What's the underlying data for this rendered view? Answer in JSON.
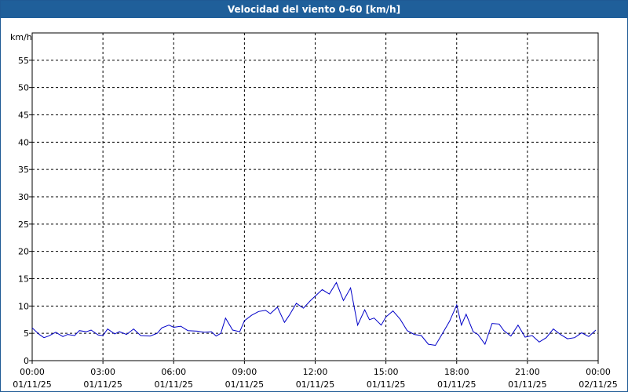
{
  "window": {
    "title": "Velocidad del viento 0-60 [km/h]"
  },
  "chart_data": {
    "type": "line",
    "title": "Velocidad del viento 0-60 [km/h]",
    "ylabel": "km/h",
    "ylim": [
      0,
      60
    ],
    "yticks": [
      0,
      5,
      10,
      15,
      20,
      25,
      30,
      35,
      40,
      45,
      50,
      55
    ],
    "xlim_hours": [
      0,
      24
    ],
    "xticks": [
      {
        "time": "00:00",
        "date": "01/11/25"
      },
      {
        "time": "03:00",
        "date": "01/11/25"
      },
      {
        "time": "06:00",
        "date": "01/11/25"
      },
      {
        "time": "09:00",
        "date": "01/11/25"
      },
      {
        "time": "12:00",
        "date": "01/11/25"
      },
      {
        "time": "15:00",
        "date": "01/11/25"
      },
      {
        "time": "18:00",
        "date": "01/11/25"
      },
      {
        "time": "21:00",
        "date": "01/11/25"
      },
      {
        "time": "00:00",
        "date": "02/11/25"
      }
    ],
    "grid": true,
    "line_color": "#0000c8",
    "series": [
      {
        "x": [
          0,
          0.3,
          0.5,
          0.7,
          1,
          1.3,
          1.5,
          1.8,
          2,
          2.3,
          2.5,
          2.8,
          3,
          3.2,
          3.5,
          3.7,
          4,
          4.3,
          4.6,
          5,
          5.3,
          5.5,
          5.8,
          6,
          6.3,
          6.6,
          7,
          7.3,
          7.6,
          7.8,
          8,
          8.2,
          8.5,
          8.8,
          9,
          9.3,
          9.6,
          9.9,
          10.1,
          10.4,
          10.7,
          10.9,
          11.2,
          11.5,
          11.8,
          12,
          12.3,
          12.6,
          12.9,
          13.2,
          13.5,
          13.8,
          14.1,
          14.3,
          14.5,
          14.8,
          15,
          15.3,
          15.6,
          15.9,
          16.2,
          16.5,
          16.8,
          17.1,
          17.4,
          17.7,
          18,
          18.2,
          18.4,
          18.7,
          18.9,
          19.2,
          19.5,
          19.8,
          20,
          20.3,
          20.6,
          20.9,
          21.2,
          21.5,
          21.8,
          22.1,
          22.4,
          22.7,
          23,
          23.3,
          23.6,
          23.9
        ],
        "y": [
          6,
          4.8,
          4.2,
          4.5,
          5.2,
          4.4,
          4.8,
          4.6,
          5.5,
          5.3,
          5.6,
          4.7,
          4.6,
          5.8,
          4.9,
          5.3,
          4.8,
          5.8,
          4.6,
          4.5,
          5.0,
          6.0,
          6.5,
          6.1,
          6.3,
          5.5,
          5.4,
          5.2,
          5.3,
          4.5,
          5.0,
          7.8,
          5.6,
          5.3,
          7.3,
          8.3,
          9.0,
          9.2,
          8.6,
          9.8,
          7.0,
          8.3,
          10.5,
          9.6,
          11.0,
          11.8,
          13.0,
          12.2,
          14.3,
          11.0,
          13.3,
          6.5,
          9.3,
          7.5,
          7.8,
          6.5,
          8.0,
          9.1,
          7.6,
          5.5,
          4.8,
          4.6,
          3.0,
          2.8,
          5.0,
          7.2,
          10.2,
          6.5,
          8.5,
          5.3,
          4.8,
          3.0,
          6.8,
          6.7,
          5.5,
          4.5,
          6.5,
          4.3,
          4.6,
          3.4,
          4.2,
          5.8,
          4.8,
          4.0,
          4.2,
          5.1,
          4.4,
          5.6
        ]
      }
    ]
  }
}
